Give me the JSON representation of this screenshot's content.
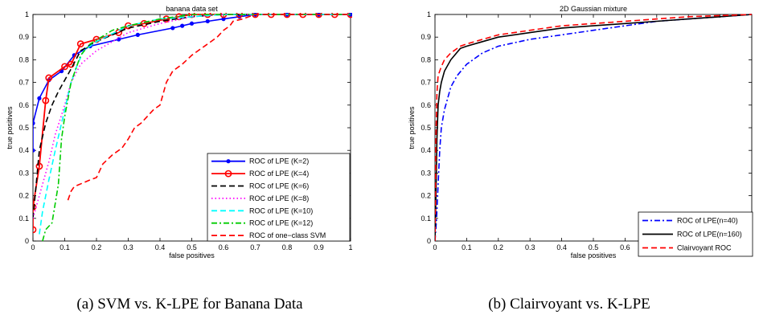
{
  "captions": {
    "a": "(a) SVM vs. K-LPE for Banana Data",
    "b": "(b) Clairvoyant vs. K-LPE"
  },
  "chart_data": [
    {
      "type": "line",
      "title": "banana data set",
      "xlabel": "false positives",
      "ylabel": "true positives",
      "xlim": [
        0,
        1
      ],
      "ylim": [
        0,
        1
      ],
      "xticks": [
        "0",
        "0.1",
        "0.2",
        "0.3",
        "0.4",
        "0.5",
        "0.6",
        "0.7",
        "0.8",
        "0.9",
        "1"
      ],
      "yticks": [
        "0",
        "0.1",
        "0.2",
        "0.3",
        "0.4",
        "0.5",
        "0.6",
        "0.7",
        "0.8",
        "0.9",
        "1"
      ],
      "grid": false,
      "legend_position": "bottom-right",
      "series": [
        {
          "name": "ROC of LPE (K=2)",
          "color": "#0000ff",
          "dash": "",
          "marker": "dot",
          "x": [
            0,
            0,
            0.02,
            0.05,
            0.09,
            0.13,
            0.18,
            0.27,
            0.33,
            0.44,
            0.47,
            0.5,
            0.55,
            0.6,
            0.65,
            0.7,
            0.8,
            0.9,
            1
          ],
          "y": [
            0.4,
            0.52,
            0.63,
            0.71,
            0.75,
            0.82,
            0.86,
            0.89,
            0.91,
            0.94,
            0.95,
            0.96,
            0.97,
            0.98,
            0.99,
            1,
            1,
            1,
            1
          ]
        },
        {
          "name": "ROC of LPE (K=4)",
          "color": "#ff0000",
          "dash": "",
          "marker": "circle",
          "x": [
            0,
            0,
            0.02,
            0.04,
            0.05,
            0.1,
            0.12,
            0.15,
            0.2,
            0.27,
            0.3,
            0.35,
            0.42,
            0.46,
            0.5,
            0.55,
            0.6,
            0.65,
            0.7,
            0.75,
            0.8,
            0.85,
            0.9,
            0.95,
            1
          ],
          "y": [
            0.05,
            0.15,
            0.33,
            0.62,
            0.72,
            0.77,
            0.78,
            0.87,
            0.89,
            0.92,
            0.95,
            0.96,
            0.98,
            0.99,
            1,
            1,
            1,
            1,
            1,
            1,
            1,
            1,
            1,
            1,
            1
          ]
        },
        {
          "name": "ROC of LPE (K=6)",
          "color": "#000000",
          "dash": "7,4",
          "marker": "",
          "x": [
            0,
            0.01,
            0.02,
            0.04,
            0.06,
            0.08,
            0.1,
            0.12,
            0.15,
            0.2,
            0.3,
            0.4,
            0.5,
            0.6,
            0.7,
            0.8,
            0.9,
            1
          ],
          "y": [
            0.1,
            0.25,
            0.4,
            0.52,
            0.6,
            0.66,
            0.71,
            0.76,
            0.84,
            0.88,
            0.94,
            0.97,
            0.99,
            1,
            1,
            1,
            1,
            1
          ]
        },
        {
          "name": "ROC of LPE (K=8)",
          "color": "#ff00ff",
          "dash": "1.5,3",
          "marker": "",
          "x": [
            0,
            0.02,
            0.05,
            0.07,
            0.1,
            0.12,
            0.15,
            0.2,
            0.3,
            0.4,
            0.5,
            0.6,
            0.7,
            0.8,
            0.9,
            1
          ],
          "y": [
            0.1,
            0.2,
            0.35,
            0.47,
            0.6,
            0.7,
            0.78,
            0.84,
            0.92,
            0.96,
            0.99,
            1,
            1,
            1,
            1,
            1
          ]
        },
        {
          "name": "ROC of LPE (K=10)",
          "color": "#00ffff",
          "dash": "7,4",
          "marker": "",
          "x": [
            0.02,
            0.03,
            0.05,
            0.07,
            0.1,
            0.12,
            0.14,
            0.16,
            0.2,
            0.3,
            0.4,
            0.5,
            0.6,
            0.7,
            0.8,
            0.9,
            1
          ],
          "y": [
            0.03,
            0.13,
            0.27,
            0.4,
            0.58,
            0.7,
            0.78,
            0.84,
            0.88,
            0.95,
            0.98,
            0.99,
            1,
            1,
            1,
            1,
            1
          ]
        },
        {
          "name": "ROC of LPE (K=12)",
          "color": "#00cc00",
          "dash": "7,3,2,3",
          "marker": "",
          "x": [
            0.03,
            0.04,
            0.06,
            0.08,
            0.09,
            0.1,
            0.12,
            0.15,
            0.18,
            0.25,
            0.3,
            0.4,
            0.5,
            0.6,
            0.7,
            0.8,
            0.9,
            1
          ],
          "y": [
            0,
            0.05,
            0.08,
            0.25,
            0.45,
            0.55,
            0.7,
            0.82,
            0.87,
            0.93,
            0.95,
            0.98,
            1,
            1,
            1,
            1,
            1,
            1
          ]
        },
        {
          "name": "ROC of one−class SVM",
          "color": "#ff0000",
          "dash": "7,4",
          "marker": "",
          "x": [
            0.11,
            0.12,
            0.13,
            0.18,
            0.2,
            0.22,
            0.25,
            0.28,
            0.3,
            0.32,
            0.34,
            0.36,
            0.38,
            0.4,
            0.42,
            0.44,
            0.47,
            0.5,
            0.52,
            0.55,
            0.58,
            0.6,
            0.62,
            0.63,
            0.66,
            0.68,
            0.7,
            0.8,
            0.9,
            1
          ],
          "y": [
            0.18,
            0.22,
            0.24,
            0.27,
            0.28,
            0.34,
            0.38,
            0.41,
            0.45,
            0.5,
            0.52,
            0.55,
            0.58,
            0.6,
            0.7,
            0.75,
            0.78,
            0.82,
            0.84,
            0.87,
            0.9,
            0.93,
            0.95,
            0.97,
            0.98,
            0.99,
            1,
            1,
            1,
            1
          ]
        }
      ]
    },
    {
      "type": "line",
      "title": "2D Gaussian mixture",
      "xlabel": "false positives",
      "ylabel": "true positives",
      "xlim": [
        0,
        1
      ],
      "ylim": [
        0,
        1
      ],
      "xticks": [
        "0",
        "0.1",
        "0.2",
        "0.3",
        "0.4",
        "0.5",
        "0.6",
        "0.7",
        "0.8",
        "0.9"
      ],
      "yticks": [
        "0",
        "0.1",
        "0.2",
        "0.3",
        "0.4",
        "0.5",
        "0.6",
        "0.7",
        "0.8",
        "0.9",
        "1"
      ],
      "grid": false,
      "legend_position": "bottom-right",
      "series": [
        {
          "name": "ROC of LPE(n=40)",
          "color": "#0000ff",
          "dash": "7,3,2,3",
          "marker": "",
          "x": [
            0,
            0.005,
            0.01,
            0.015,
            0.02,
            0.03,
            0.04,
            0.05,
            0.07,
            0.1,
            0.15,
            0.2,
            0.3,
            0.4,
            0.5,
            0.6,
            0.7,
            0.8,
            0.9,
            1
          ],
          "y": [
            0,
            0.1,
            0.25,
            0.4,
            0.5,
            0.58,
            0.63,
            0.68,
            0.73,
            0.78,
            0.83,
            0.86,
            0.89,
            0.91,
            0.93,
            0.95,
            0.97,
            0.98,
            0.99,
            1
          ]
        },
        {
          "name": "ROC of LPE(n=160)",
          "color": "#000000",
          "dash": "",
          "marker": "",
          "x": [
            0,
            0.003,
            0.006,
            0.01,
            0.015,
            0.02,
            0.03,
            0.05,
            0.08,
            0.1,
            0.15,
            0.2,
            0.3,
            0.4,
            0.5,
            0.6,
            0.7,
            0.8,
            0.9,
            1
          ],
          "y": [
            0,
            0.2,
            0.45,
            0.6,
            0.66,
            0.7,
            0.75,
            0.8,
            0.85,
            0.86,
            0.88,
            0.9,
            0.92,
            0.94,
            0.95,
            0.96,
            0.97,
            0.98,
            0.99,
            1
          ]
        },
        {
          "name": "Clairvoyant ROC",
          "color": "#ff0000",
          "dash": "7,4",
          "marker": "",
          "x": [
            0,
            0.003,
            0.006,
            0.01,
            0.02,
            0.03,
            0.05,
            0.08,
            0.1,
            0.15,
            0.2,
            0.3,
            0.4,
            0.5,
            0.6,
            0.7,
            0.8,
            0.9,
            1
          ],
          "y": [
            0,
            0.45,
            0.65,
            0.73,
            0.77,
            0.8,
            0.83,
            0.86,
            0.87,
            0.89,
            0.91,
            0.93,
            0.95,
            0.96,
            0.97,
            0.98,
            0.99,
            0.995,
            1
          ]
        }
      ]
    }
  ]
}
